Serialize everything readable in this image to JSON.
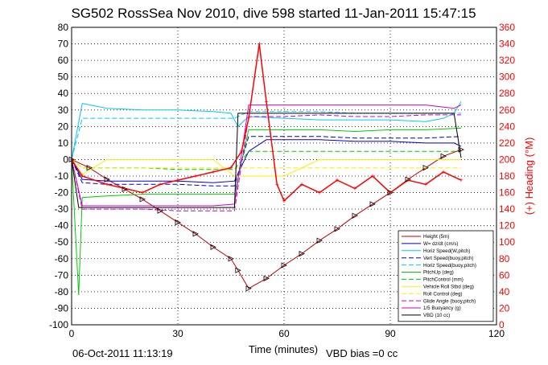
{
  "chart_data": {
    "type": "line",
    "title": "SG502 RossSea Nov 2010, dive 598 started 11-Jan-2011 15:47:15",
    "xlabel": "Time (minutes)",
    "ylabel_right": "(+) Heading (°M)",
    "footer_date": "06-Oct-2011 11:13:19",
    "footer_note": "VBD bias =0 cc",
    "xlim": [
      0,
      120
    ],
    "ylim": [
      -100,
      80
    ],
    "ylim_right": [
      0,
      360
    ],
    "xticks": [
      "0",
      "30",
      "60",
      "90",
      "120"
    ],
    "yticks": [
      "80",
      "70",
      "60",
      "50",
      "40",
      "30",
      "20",
      "10",
      "0",
      "-10",
      "-20",
      "-30",
      "-40",
      "-50",
      "-60",
      "-70",
      "-80",
      "-90",
      "-100"
    ],
    "yticks_right": [
      "360",
      "340",
      "320",
      "300",
      "280",
      "260",
      "240",
      "220",
      "200",
      "180",
      "160",
      "140",
      "120",
      "100",
      "80",
      "60",
      "40",
      "20",
      "0"
    ],
    "grid": true,
    "legend_position": "bottom-right",
    "colors": {
      "height": "#c00000",
      "w": "#0000cc",
      "horiz_speed": "#00c8ff",
      "pitch": "#00cc00",
      "roll": "#ffee00",
      "buoyancy": "#cc00cc",
      "vbd": "#000000",
      "heading": "#ff0000"
    },
    "series": [
      {
        "name": "Height (5m)",
        "x": [
          0,
          5,
          10,
          15,
          20,
          25,
          30,
          35,
          40,
          45,
          47,
          50,
          55,
          60,
          65,
          70,
          75,
          80,
          85,
          90,
          95,
          100,
          105,
          110
        ],
        "values": [
          0,
          -5,
          -12,
          -18,
          -24,
          -31,
          -38,
          -45,
          -53,
          -60,
          -67,
          -78,
          -72,
          -64,
          -57,
          -49,
          -42,
          -34,
          -27,
          -20,
          -12,
          -5,
          2,
          6
        ]
      },
      {
        "name": "W= dz/dt (cm/s)",
        "x": [
          0,
          3,
          10,
          20,
          30,
          40,
          46,
          50,
          55,
          60,
          70,
          80,
          90,
          100,
          105,
          108,
          110
        ],
        "values": [
          0,
          -12,
          -13,
          -13,
          -13,
          -14,
          -13,
          5,
          12,
          12,
          12,
          11,
          11,
          10,
          10,
          10,
          8
        ]
      },
      {
        "name": "Horiz Speed(W,pitch)",
        "x": [
          0,
          3,
          10,
          20,
          30,
          40,
          45,
          47,
          50,
          60,
          70,
          80,
          90,
          100,
          105,
          108,
          110
        ],
        "values": [
          0,
          34,
          31,
          30,
          30,
          29,
          28,
          20,
          26,
          25,
          24,
          24,
          24,
          23,
          25,
          28,
          35
        ]
      },
      {
        "name": "Vert Speed(buoy,pitch)",
        "x": [
          0,
          3,
          10,
          20,
          30,
          40,
          46,
          50,
          60,
          70,
          80,
          90,
          100,
          110
        ],
        "values": [
          0,
          -14,
          -15,
          -15,
          -15,
          -16,
          -16,
          14,
          14,
          14,
          13,
          13,
          13,
          14
        ]
      },
      {
        "name": "Horiz Speed(buoy,pitch)",
        "x": [
          0,
          3,
          10,
          20,
          30,
          40,
          46,
          50,
          60,
          70,
          80,
          90,
          100,
          110
        ],
        "values": [
          0,
          25,
          25,
          25,
          25,
          25,
          25,
          29,
          29,
          29,
          28,
          28,
          28,
          28
        ]
      },
      {
        "name": "PitchUp (deg)",
        "x": [
          0,
          2,
          3,
          10,
          20,
          30,
          40,
          46,
          50,
          60,
          70,
          80,
          90,
          100,
          110
        ],
        "values": [
          0,
          -82,
          -23,
          -22,
          -21,
          -21,
          -21,
          -21,
          18,
          18,
          18,
          17,
          18,
          18,
          19
        ]
      },
      {
        "name": "PitchControl (mm)",
        "x": [
          0,
          3,
          10,
          20,
          30,
          40,
          46,
          50,
          60,
          70,
          80,
          90,
          100,
          110
        ],
        "values": [
          0,
          -5,
          -5,
          -5,
          -6,
          -6,
          -6,
          5,
          5,
          5,
          5,
          5,
          5,
          5
        ]
      },
      {
        "name": "Vehicle Roll Stbd (deg)",
        "x": [
          0,
          3,
          10,
          20,
          30,
          40,
          46,
          50,
          60,
          70,
          80,
          90,
          100,
          110
        ],
        "values": [
          0,
          -9,
          0,
          0,
          0,
          0,
          -10,
          -10,
          -10,
          0,
          0,
          0,
          0,
          0
        ]
      },
      {
        "name": "Roll Control (deg)",
        "x": [
          0,
          3,
          10,
          20,
          30,
          40,
          46,
          50,
          60,
          70,
          80,
          90,
          100,
          110
        ],
        "values": [
          0,
          -5,
          -5,
          -5,
          -5,
          -5,
          -5,
          -5,
          -5,
          -5,
          -5,
          -5,
          -5,
          -5
        ]
      },
      {
        "name": "Glide Angle (buoy,pitch)",
        "x": [
          0,
          3,
          10,
          20,
          30,
          40,
          46,
          50,
          60,
          70,
          80,
          90,
          100,
          110
        ],
        "values": [
          0,
          -30,
          -30,
          -30,
          -31,
          -31,
          -31,
          26,
          26,
          27,
          26,
          26,
          27,
          27
        ]
      },
      {
        "name": "1/5 Buoyancy (g)",
        "x": [
          0,
          3,
          10,
          20,
          30,
          40,
          46,
          50,
          60,
          70,
          80,
          90,
          100,
          108,
          110
        ],
        "values": [
          0,
          -28,
          -28,
          -28,
          -28,
          -28,
          -27,
          33,
          33,
          33,
          33,
          33,
          33,
          31,
          33
        ]
      },
      {
        "name": "VBD (10 cc)",
        "x": [
          0,
          2,
          3,
          46,
          47,
          108,
          110
        ],
        "values": [
          0,
          -29,
          -29,
          -29,
          28,
          28,
          1
        ]
      },
      {
        "name": "Heading (°M)",
        "axis": "right",
        "x": [
          0,
          3,
          10,
          15,
          20,
          25,
          30,
          35,
          40,
          45,
          48,
          50,
          53,
          55,
          58,
          60,
          65,
          70,
          75,
          80,
          85,
          90,
          95,
          100,
          105,
          110
        ],
        "values": [
          200,
          180,
          170,
          165,
          160,
          170,
          175,
          180,
          185,
          190,
          210,
          250,
          340,
          270,
          170,
          150,
          170,
          160,
          175,
          165,
          180,
          160,
          175,
          170,
          185,
          175
        ]
      }
    ]
  }
}
